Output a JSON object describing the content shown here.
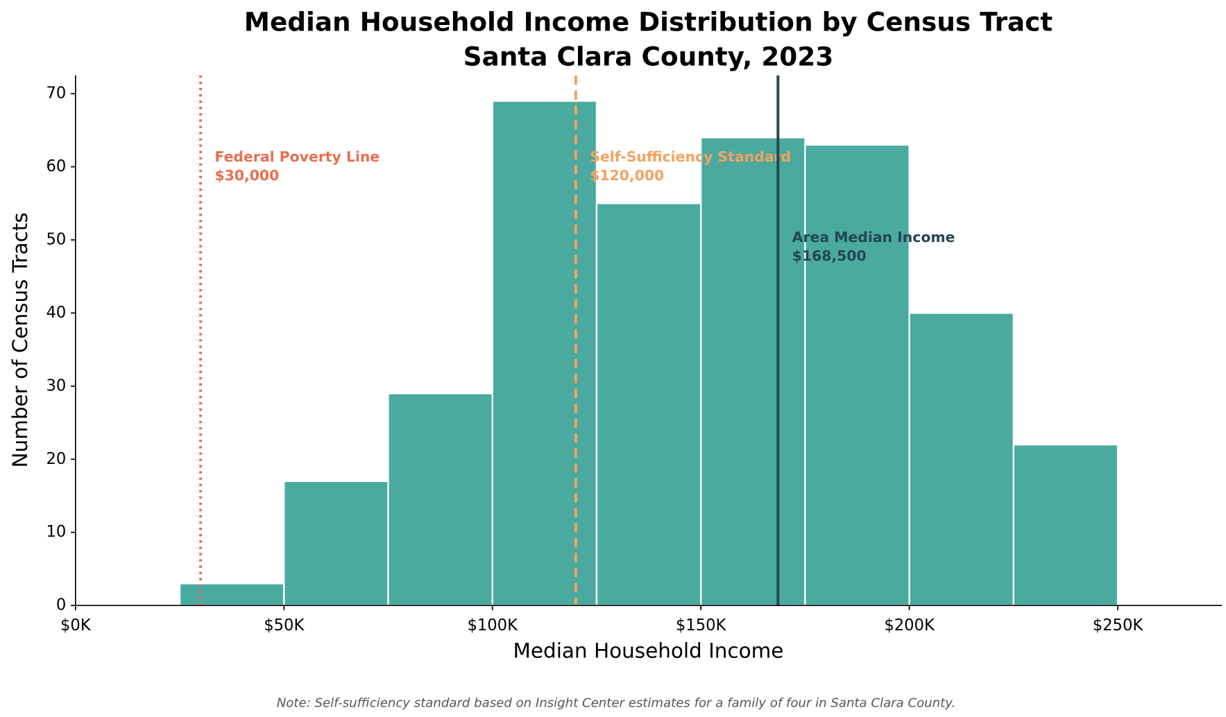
{
  "chart_data": {
    "type": "histogram",
    "title": "Median Household Income Distribution by Census Tract",
    "subtitle": "Santa Clara County, 2023",
    "x_label": "Median Household Income",
    "y_label": "Number of Census Tracts",
    "bins": [
      25000,
      50000,
      75000,
      100000,
      125000,
      150000,
      175000,
      200000,
      225000,
      250000
    ],
    "counts": [
      3,
      17,
      29,
      69,
      55,
      64,
      63,
      40,
      22
    ],
    "color": "#4aaa9f",
    "xlim": [
      0,
      275000
    ],
    "ylim": [
      0,
      72.5
    ],
    "xticks": [
      {
        "value": 0,
        "label": "$0K"
      },
      {
        "value": 50000,
        "label": "$50K"
      },
      {
        "value": 100000,
        "label": "$100K"
      },
      {
        "value": 150000,
        "label": "$150K"
      },
      {
        "value": 200000,
        "label": "$200K"
      },
      {
        "value": 250000,
        "label": "$250K"
      }
    ],
    "yticks": [
      0,
      10,
      20,
      30,
      40,
      50,
      60,
      70
    ],
    "reference_lines": [
      {
        "x": 30000,
        "label": "Federal Poverty Line",
        "value_label": "$30,000",
        "color": "#e76f51",
        "style": "dotted"
      },
      {
        "x": 120000,
        "label": "Self-Sufficiency Standard",
        "value_label": "$120,000",
        "color": "#f4a261",
        "style": "dashed"
      },
      {
        "x": 168500,
        "label": "Area Median Income",
        "value_label": "$168,500",
        "color": "#264653",
        "style": "solid"
      }
    ],
    "note": "Note: Self-sufficiency standard based on Insight Center estimates for a family of four in Santa Clara County."
  }
}
